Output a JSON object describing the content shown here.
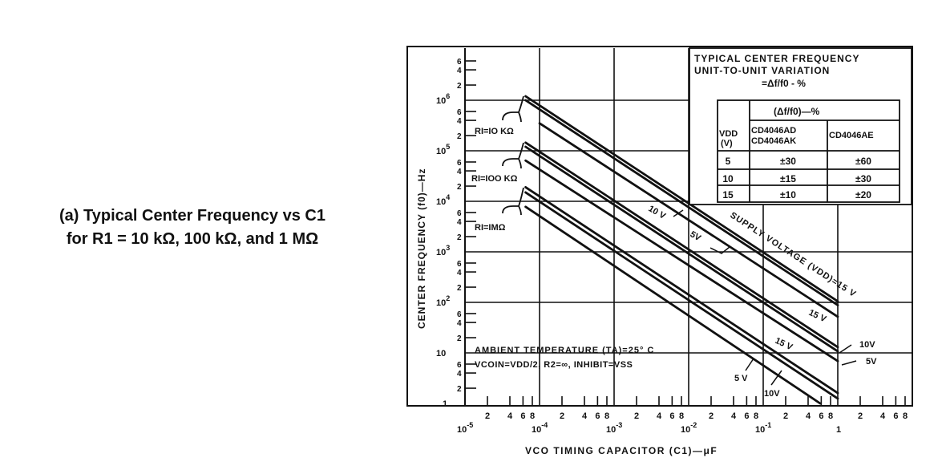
{
  "caption": {
    "line1": "(a) Typical Center Frequency vs C1",
    "line2": "for R1 = 10 kΩ, 100 kΩ, and 1 MΩ"
  },
  "chart_data": {
    "type": "line",
    "xscale": "log",
    "yscale": "log",
    "xlabel": "VCO TIMING CAPACITOR (C1)—μF",
    "ylabel": "CENTER FREQUENCY (f0)—Hz",
    "xlim": [
      1e-05,
      10
    ],
    "ylim": [
      1,
      10000000
    ],
    "grid": true,
    "x_major_ticks": [
      {
        "value": 1e-05,
        "label": "10-5",
        "base": "10",
        "exp": "-5"
      },
      {
        "value": 0.0001,
        "label": "10-4",
        "base": "10",
        "exp": "-4"
      },
      {
        "value": 0.001,
        "label": "10-3",
        "base": "10",
        "exp": "-3"
      },
      {
        "value": 0.01,
        "label": "10-2",
        "base": "10",
        "exp": "-2"
      },
      {
        "value": 0.1,
        "label": "10-1",
        "base": "10",
        "exp": "-1"
      },
      {
        "value": 1,
        "label": "1",
        "base": "1",
        "exp": ""
      }
    ],
    "y_major_ticks": [
      {
        "value": 1,
        "base": "1",
        "exp": ""
      },
      {
        "value": 10,
        "base": "10",
        "exp": ""
      },
      {
        "value": 100,
        "base": "10",
        "exp": "2"
      },
      {
        "value": 1000,
        "base": "10",
        "exp": "3"
      },
      {
        "value": 10000,
        "base": "10",
        "exp": "4"
      },
      {
        "value": 100000,
        "base": "10",
        "exp": "5"
      },
      {
        "value": 1000000,
        "base": "10",
        "exp": "6"
      }
    ],
    "minor_tick_labels": [
      "2",
      "4",
      "6",
      "8"
    ],
    "series": [
      {
        "name": "R1=10 kΩ, VDD=15V",
        "points": [
          [
            6.5e-05,
            1200000
          ],
          [
            1,
            105
          ]
        ]
      },
      {
        "name": "R1=10 kΩ, VDD=10V",
        "points": [
          [
            6.5e-05,
            1000000
          ],
          [
            1,
            88
          ]
        ]
      },
      {
        "name": "R1=10 kΩ, VDD=5V",
        "points": [
          [
            0.0001,
            350000
          ],
          [
            1,
            52
          ]
        ]
      },
      {
        "name": "R1=100 kΩ, VDD=15V",
        "points": [
          [
            6.5e-05,
            145000
          ],
          [
            1,
            13
          ]
        ]
      },
      {
        "name": "R1=100 kΩ, VDD=10V",
        "points": [
          [
            6.5e-05,
            120000
          ],
          [
            1,
            10.7
          ]
        ]
      },
      {
        "name": "R1=100 kΩ, VDD=5V",
        "points": [
          [
            6.5e-05,
            64000
          ],
          [
            1,
            6.9
          ]
        ]
      },
      {
        "name": "R1=1 MΩ, VDD=15V",
        "points": [
          [
            6.5e-05,
            19000
          ],
          [
            1,
            1.6
          ]
        ]
      },
      {
        "name": "R1=1 MΩ, VDD=10V",
        "points": [
          [
            6.5e-05,
            15000
          ],
          [
            1,
            1.25
          ]
        ]
      },
      {
        "name": "R1=1 MΩ, VDD=5V",
        "points": [
          [
            6.5e-05,
            7800
          ],
          [
            0.58,
            1
          ]
        ]
      }
    ],
    "group_labels": [
      "RI=IO KΩ",
      "RI=IOO KΩ",
      "RI=IMΩ"
    ],
    "annotations": {
      "supply": "SUPPLY VOLTAGE (VDD)=15 V",
      "v10_upper": "10 V",
      "v5_upper": "5V",
      "v15_mid": "15 V",
      "v15_low": "15 V",
      "v10_right": "10V",
      "v5_right": "5V",
      "v5_low": "5 V",
      "v10_low": "10V",
      "ambient": "AMBIENT TEMPERATURE (TA)=25° C",
      "conditions": "VCOIN=VDD/2, R2=∞, INHIBIT=VSS"
    },
    "variation_table": {
      "title1": "TYPICAL CENTER FREQUENCY",
      "title2": "UNIT-TO-UNIT VARIATION",
      "title3": "=Δf/f0 - %",
      "header": "(Δf/f0)—%",
      "col0a": "VDD",
      "col0b": "(V)",
      "col1a": "CD4046AD",
      "col1b": "CD4046AK",
      "col2": "CD4046AE",
      "rows": [
        {
          "vdd": "5",
          "adak": "±30",
          "ae": "±60"
        },
        {
          "vdd": "10",
          "adak": "±15",
          "ae": "±30"
        },
        {
          "vdd": "15",
          "adak": "±10",
          "ae": "±20"
        }
      ]
    }
  }
}
